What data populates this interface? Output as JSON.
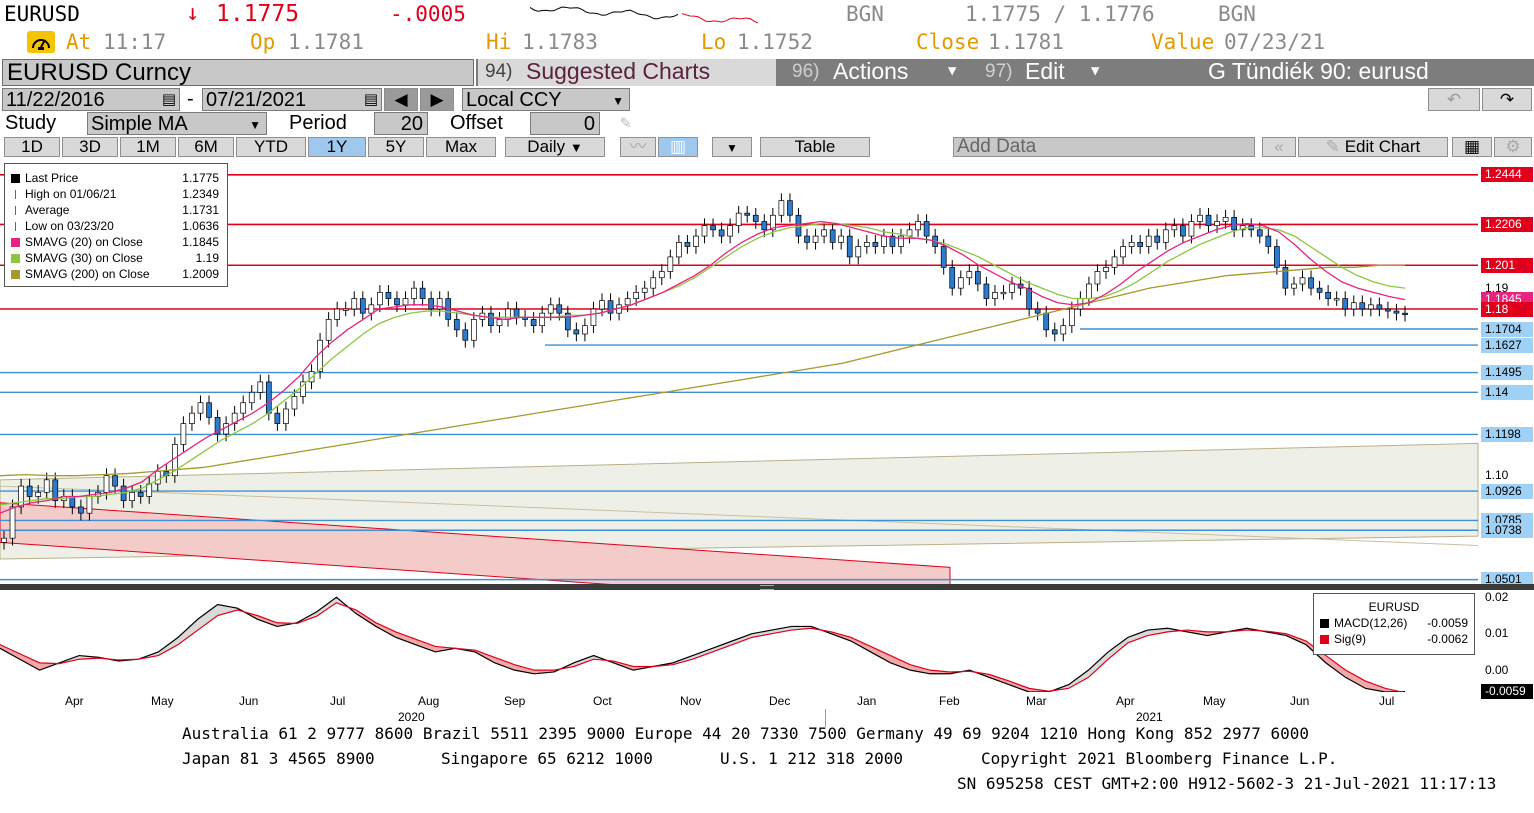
{
  "quote": {
    "ticker": "EURUSD",
    "arrow": "↓",
    "last": "1.1775",
    "change": "-.0005",
    "source1": "BGN",
    "bid_ask": "1.1775 / 1.1776",
    "source2": "BGN",
    "at_label": "At",
    "at_time": "11:17",
    "op_label": "Op",
    "op_value": "1.1781",
    "hi_label": "Hi",
    "hi_value": "1.1783",
    "lo_label": "Lo",
    "lo_value": "1.1752",
    "close_label": "Close",
    "close_value": "1.1781",
    "value_label": "Value",
    "value_date": "07/23/21"
  },
  "menu": {
    "security": "EURUSD Curncy",
    "suggested_num": "94)",
    "suggested_label": "Suggested Charts",
    "actions_num": "96)",
    "actions_label": "Actions",
    "edit_num": "97)",
    "edit_label": "Edit",
    "chart_title": "G Tündiék 90: eurusd"
  },
  "range": {
    "start_date": "11/22/2016",
    "dash": "-",
    "end_date": "07/21/2021",
    "currency": "Local CCY"
  },
  "study": {
    "study_label": "Study",
    "study_value": "Simple MA",
    "period_label": "Period",
    "period_value": "20",
    "offset_label": "Offset",
    "offset_value": "0"
  },
  "toolbar": {
    "periods": [
      "1D",
      "3D",
      "1M",
      "6M",
      "YTD",
      "1Y",
      "5Y",
      "Max"
    ],
    "selected_period": "1Y",
    "frequency": "Daily",
    "table": "Table",
    "add_data": "Add Data",
    "edit_chart": "Edit Chart"
  },
  "legend": [
    {
      "label": "Last Price",
      "value": "1.1775",
      "color": "#000000"
    },
    {
      "label": "High on 01/06/21",
      "value": "1.2349",
      "color": "#000000"
    },
    {
      "label": "Average",
      "value": "1.1731",
      "color": "#000000"
    },
    {
      "label": "Low on 03/23/20",
      "value": "1.0636",
      "color": "#000000"
    },
    {
      "label": "SMAVG (20)  on Close",
      "value": "1.1845",
      "color": "#e8237f"
    },
    {
      "label": "SMAVG (30)  on Close",
      "value": "1.19",
      "color": "#8cc63f"
    },
    {
      "label": "SMAVG (200)  on Close",
      "value": "1.2009",
      "color": "#a39a2a"
    }
  ],
  "chart_data": {
    "type": "line",
    "y_axis_ticks": [
      "1.10",
      "1.19"
    ],
    "price_levels_red": [
      "1.2444",
      "1.2206",
      "1.201",
      "1.18"
    ],
    "price_levels_blue": [
      "1.1704",
      "1.1627",
      "1.1495",
      "1.14",
      "1.1198",
      "1.0926",
      "1.0785",
      "1.0738",
      "1.0501"
    ],
    "ma_tag": "1.1845",
    "ylim": [
      1.048,
      1.252
    ],
    "x_months": [
      "Apr",
      "May",
      "Jun",
      "Jul",
      "Aug",
      "Sep",
      "Oct",
      "Nov",
      "Dec",
      "Jan",
      "Feb",
      "Mar",
      "Apr",
      "May",
      "Jun",
      "Jul"
    ],
    "x_years": [
      "2020",
      "2021"
    ],
    "close_series": [
      1.07,
      1.085,
      1.095,
      1.09,
      1.092,
      1.098,
      1.088,
      1.09,
      1.085,
      1.082,
      1.09,
      1.092,
      1.1,
      1.095,
      1.088,
      1.092,
      1.09,
      1.096,
      1.102,
      1.1,
      1.115,
      1.125,
      1.13,
      1.135,
      1.128,
      1.12,
      1.125,
      1.13,
      1.135,
      1.14,
      1.145,
      1.13,
      1.125,
      1.132,
      1.138,
      1.145,
      1.15,
      1.165,
      1.175,
      1.18,
      1.18,
      1.185,
      1.178,
      1.182,
      1.188,
      1.185,
      1.182,
      1.185,
      1.19,
      1.185,
      1.18,
      1.185,
      1.175,
      1.17,
      1.165,
      1.175,
      1.178,
      1.172,
      1.175,
      1.18,
      1.176,
      1.175,
      1.172,
      1.178,
      1.182,
      1.178,
      1.17,
      1.168,
      1.172,
      1.18,
      1.184,
      1.178,
      1.182,
      1.185,
      1.188,
      1.19,
      1.195,
      1.198,
      1.205,
      1.212,
      1.21,
      1.215,
      1.22,
      1.218,
      1.215,
      1.22,
      1.226,
      1.225,
      1.222,
      1.218,
      1.225,
      1.232,
      1.225,
      1.215,
      1.212,
      1.215,
      1.218,
      1.212,
      1.215,
      1.205,
      1.21,
      1.212,
      1.21,
      1.215,
      1.21,
      1.215,
      1.218,
      1.222,
      1.215,
      1.21,
      1.2,
      1.19,
      1.195,
      1.198,
      1.192,
      1.185,
      1.188,
      1.188,
      1.192,
      1.19,
      1.18,
      1.178,
      1.17,
      1.168,
      1.172,
      1.18,
      1.185,
      1.192,
      1.198,
      1.2,
      1.205,
      1.21,
      1.212,
      1.21,
      1.215,
      1.212,
      1.218,
      1.22,
      1.215,
      1.222,
      1.225,
      1.22,
      1.222,
      1.224,
      1.218,
      1.22,
      1.218,
      1.215,
      1.21,
      1.2,
      1.19,
      1.192,
      1.195,
      1.19,
      1.188,
      1.185,
      1.185,
      1.18,
      1.183,
      1.18,
      1.182,
      1.18,
      1.179,
      1.178,
      1.1775
    ],
    "sma20_series": [
      1.082,
      1.085,
      1.087,
      1.088,
      1.09,
      1.09,
      1.091,
      1.092,
      1.094,
      1.097,
      1.103,
      1.108,
      1.113,
      1.118,
      1.122,
      1.126,
      1.13,
      1.135,
      1.141,
      1.148,
      1.157,
      1.164,
      1.17,
      1.175,
      1.18,
      1.181,
      1.182,
      1.182,
      1.181,
      1.179,
      1.177,
      1.176,
      1.175,
      1.176,
      1.176,
      1.176,
      1.176,
      1.177,
      1.178,
      1.18,
      1.182,
      1.185,
      1.188,
      1.192,
      1.196,
      1.201,
      1.207,
      1.212,
      1.216,
      1.219,
      1.22,
      1.221,
      1.222,
      1.221,
      1.219,
      1.217,
      1.215,
      1.214,
      1.214,
      1.213,
      1.21,
      1.206,
      1.201,
      1.197,
      1.193,
      1.19,
      1.186,
      1.183,
      1.182,
      1.183,
      1.187,
      1.192,
      1.198,
      1.203,
      1.208,
      1.212,
      1.215,
      1.218,
      1.22,
      1.221,
      1.22,
      1.217,
      1.211,
      1.204,
      1.198,
      1.193,
      1.19,
      1.188,
      1.186,
      1.1845
    ],
    "sma30_series": [
      1.086,
      1.087,
      1.088,
      1.089,
      1.089,
      1.09,
      1.09,
      1.091,
      1.092,
      1.094,
      1.098,
      1.102,
      1.107,
      1.112,
      1.117,
      1.121,
      1.125,
      1.13,
      1.136,
      1.142,
      1.149,
      1.156,
      1.162,
      1.168,
      1.173,
      1.176,
      1.178,
      1.179,
      1.179,
      1.178,
      1.177,
      1.176,
      1.176,
      1.176,
      1.176,
      1.176,
      1.177,
      1.177,
      1.178,
      1.18,
      1.182,
      1.185,
      1.188,
      1.191,
      1.195,
      1.2,
      1.205,
      1.21,
      1.214,
      1.217,
      1.219,
      1.22,
      1.221,
      1.221,
      1.22,
      1.219,
      1.217,
      1.216,
      1.214,
      1.213,
      1.211,
      1.208,
      1.205,
      1.201,
      1.197,
      1.193,
      1.19,
      1.187,
      1.185,
      1.185,
      1.186,
      1.189,
      1.193,
      1.198,
      1.203,
      1.207,
      1.211,
      1.214,
      1.217,
      1.219,
      1.219,
      1.218,
      1.215,
      1.21,
      1.205,
      1.2,
      1.196,
      1.193,
      1.191,
      1.19
    ],
    "sma200_series": [
      1.1,
      1.1005,
      1.1,
      1.1,
      1.1005,
      1.101,
      1.102,
      1.103,
      1.104,
      1.106,
      1.108,
      1.11,
      1.112,
      1.114,
      1.116,
      1.118,
      1.12,
      1.122,
      1.124,
      1.126,
      1.128,
      1.13,
      1.132,
      1.134,
      1.136,
      1.138,
      1.14,
      1.142,
      1.144,
      1.146,
      1.148,
      1.15,
      1.152,
      1.154,
      1.157,
      1.16,
      1.163,
      1.166,
      1.169,
      1.172,
      1.175,
      1.178,
      1.181,
      1.184,
      1.187,
      1.19,
      1.192,
      1.194,
      1.196,
      1.197,
      1.198,
      1.199,
      1.2,
      1.2,
      1.201,
      1.2009
    ],
    "lower_panel": {
      "type": "area",
      "title": "EURUSD",
      "series": [
        {
          "name": "MACD(12,26)",
          "value": "-0.0059",
          "color": "#000000"
        },
        {
          "name": "Sig(9)",
          "value": "-0.0062",
          "color": "#e0001b"
        }
      ],
      "y_ticks": [
        "0.02",
        "0.01",
        "0.00",
        "-0.0059"
      ],
      "ylim": [
        -0.006,
        0.022
      ],
      "macd": [
        0.006,
        0.003,
        0.0,
        0.002,
        0.004,
        0.0035,
        0.0025,
        0.003,
        0.005,
        0.009,
        0.014,
        0.018,
        0.017,
        0.014,
        0.012,
        0.013,
        0.016,
        0.02,
        0.0155,
        0.012,
        0.009,
        0.007,
        0.005,
        0.006,
        0.005,
        0.002,
        0.0,
        -0.001,
        -0.0005,
        0.002,
        0.004,
        0.002,
        0.0,
        0.001,
        0.002,
        0.004,
        0.006,
        0.008,
        0.01,
        0.011,
        0.012,
        0.012,
        0.01,
        0.008,
        0.005,
        0.002,
        0.0,
        -0.001,
        -0.001,
        0.0,
        -0.002,
        -0.004,
        -0.006,
        -0.006,
        -0.004,
        0.0,
        0.005,
        0.009,
        0.011,
        0.0115,
        0.0105,
        0.0095,
        0.0105,
        0.0115,
        0.0105,
        0.0095,
        0.007,
        0.002,
        -0.002,
        -0.005,
        -0.006,
        -0.0059
      ],
      "signal": [
        0.007,
        0.0045,
        0.002,
        0.0018,
        0.003,
        0.0033,
        0.0028,
        0.003,
        0.004,
        0.007,
        0.011,
        0.015,
        0.0165,
        0.015,
        0.013,
        0.0128,
        0.0148,
        0.0185,
        0.0165,
        0.013,
        0.0105,
        0.0085,
        0.0065,
        0.006,
        0.0055,
        0.0035,
        0.0015,
        0.0,
        0.0,
        0.001,
        0.003,
        0.0025,
        0.001,
        0.001,
        0.0015,
        0.003,
        0.005,
        0.007,
        0.009,
        0.01,
        0.011,
        0.0115,
        0.0105,
        0.009,
        0.0065,
        0.004,
        0.0015,
        0.0,
        -0.0005,
        -0.0003,
        -0.0012,
        -0.003,
        -0.005,
        -0.0058,
        -0.005,
        -0.002,
        0.003,
        0.0075,
        0.0095,
        0.0105,
        0.011,
        0.0105,
        0.0105,
        0.011,
        0.0107,
        0.01,
        0.008,
        0.004,
        0.0,
        -0.003,
        -0.005,
        -0.0062
      ]
    }
  },
  "footer": {
    "line1": "Australia 61 2 9777 8600 Brazil 5511 2395 9000 Europe 44 20 7330 7500 Germany 49 69 9204 1210 Hong Kong 852 2977 6000",
    "line2a": "Japan 81 3 4565 8900",
    "line2b": "Singapore 65 6212 1000",
    "line2c": "U.S. 1 212 318 2000",
    "line2d": "Copyright 2021 Bloomberg Finance L.P.",
    "line3": "SN 695258 CEST GMT+2:00 H912-5602-3 21-Jul-2021 11:17:13"
  },
  "colors": {
    "orange": "#e39a00",
    "red_level": "#e0001b",
    "blue_level": "#3d8fd6",
    "sma20": "#e8237f",
    "sma30": "#8cc63f",
    "sma200": "#a39a2a"
  }
}
